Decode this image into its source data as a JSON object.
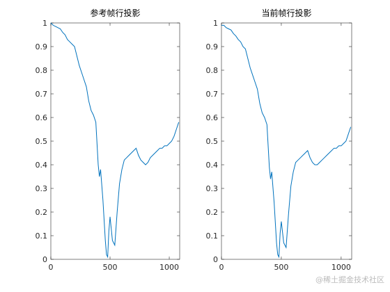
{
  "chart_data": [
    {
      "type": "line",
      "title": "参考帧行投影",
      "color": "#0072bd",
      "x": [
        0,
        20,
        40,
        60,
        80,
        100,
        120,
        140,
        160,
        180,
        200,
        220,
        240,
        260,
        280,
        300,
        320,
        340,
        360,
        380,
        400,
        410,
        420,
        440,
        460,
        470,
        480,
        490,
        500,
        520,
        540,
        560,
        580,
        600,
        620,
        640,
        660,
        680,
        700,
        720,
        740,
        760,
        780,
        800,
        820,
        840,
        860,
        880,
        900,
        920,
        940,
        960,
        980,
        1000,
        1020,
        1040,
        1060,
        1080
      ],
      "values": [
        1,
        0.99,
        0.985,
        0.98,
        0.975,
        0.96,
        0.95,
        0.93,
        0.92,
        0.91,
        0.9,
        0.86,
        0.82,
        0.79,
        0.76,
        0.73,
        0.67,
        0.63,
        0.61,
        0.58,
        0.4,
        0.35,
        0.38,
        0.25,
        0.08,
        0.02,
        0.01,
        0.12,
        0.18,
        0.08,
        0.06,
        0.2,
        0.32,
        0.38,
        0.42,
        0.43,
        0.44,
        0.45,
        0.46,
        0.47,
        0.44,
        0.42,
        0.41,
        0.4,
        0.41,
        0.43,
        0.44,
        0.45,
        0.46,
        0.47,
        0.47,
        0.48,
        0.48,
        0.49,
        0.5,
        0.52,
        0.55,
        0.58
      ],
      "xlim": [
        0,
        1088
      ],
      "ylim": [
        0,
        1
      ],
      "xticks": [
        0,
        500,
        1000
      ],
      "yticks": [
        0,
        0.1,
        0.2,
        0.3,
        0.4,
        0.5,
        0.6,
        0.7,
        0.8,
        0.9,
        1
      ]
    },
    {
      "type": "line",
      "title": "当前帧行投影",
      "color": "#0072bd",
      "x": [
        0,
        20,
        40,
        60,
        80,
        100,
        120,
        140,
        160,
        180,
        200,
        220,
        240,
        260,
        280,
        300,
        320,
        340,
        360,
        380,
        400,
        410,
        420,
        440,
        460,
        470,
        480,
        490,
        500,
        520,
        540,
        560,
        580,
        600,
        620,
        640,
        660,
        680,
        700,
        720,
        740,
        760,
        780,
        800,
        820,
        840,
        860,
        880,
        900,
        920,
        940,
        960,
        980,
        1000,
        1020,
        1040,
        1060,
        1080
      ],
      "values": [
        0.99,
        0.99,
        0.98,
        0.975,
        0.97,
        0.955,
        0.945,
        0.93,
        0.92,
        0.9,
        0.89,
        0.85,
        0.81,
        0.78,
        0.75,
        0.72,
        0.66,
        0.62,
        0.6,
        0.57,
        0.39,
        0.34,
        0.37,
        0.24,
        0.07,
        0.02,
        0.01,
        0.11,
        0.16,
        0.07,
        0.05,
        0.19,
        0.31,
        0.37,
        0.41,
        0.42,
        0.43,
        0.44,
        0.45,
        0.46,
        0.43,
        0.41,
        0.4,
        0.4,
        0.41,
        0.42,
        0.43,
        0.44,
        0.45,
        0.46,
        0.47,
        0.47,
        0.48,
        0.48,
        0.49,
        0.5,
        0.53,
        0.56
      ],
      "xlim": [
        0,
        1088
      ],
      "ylim": [
        0,
        1
      ],
      "xticks": [
        0,
        500,
        1000
      ],
      "yticks": [
        0,
        0.1,
        0.2,
        0.3,
        0.4,
        0.5,
        0.6,
        0.7,
        0.8,
        0.9,
        1
      ]
    }
  ],
  "watermark": "@稀土掘金技术社区"
}
